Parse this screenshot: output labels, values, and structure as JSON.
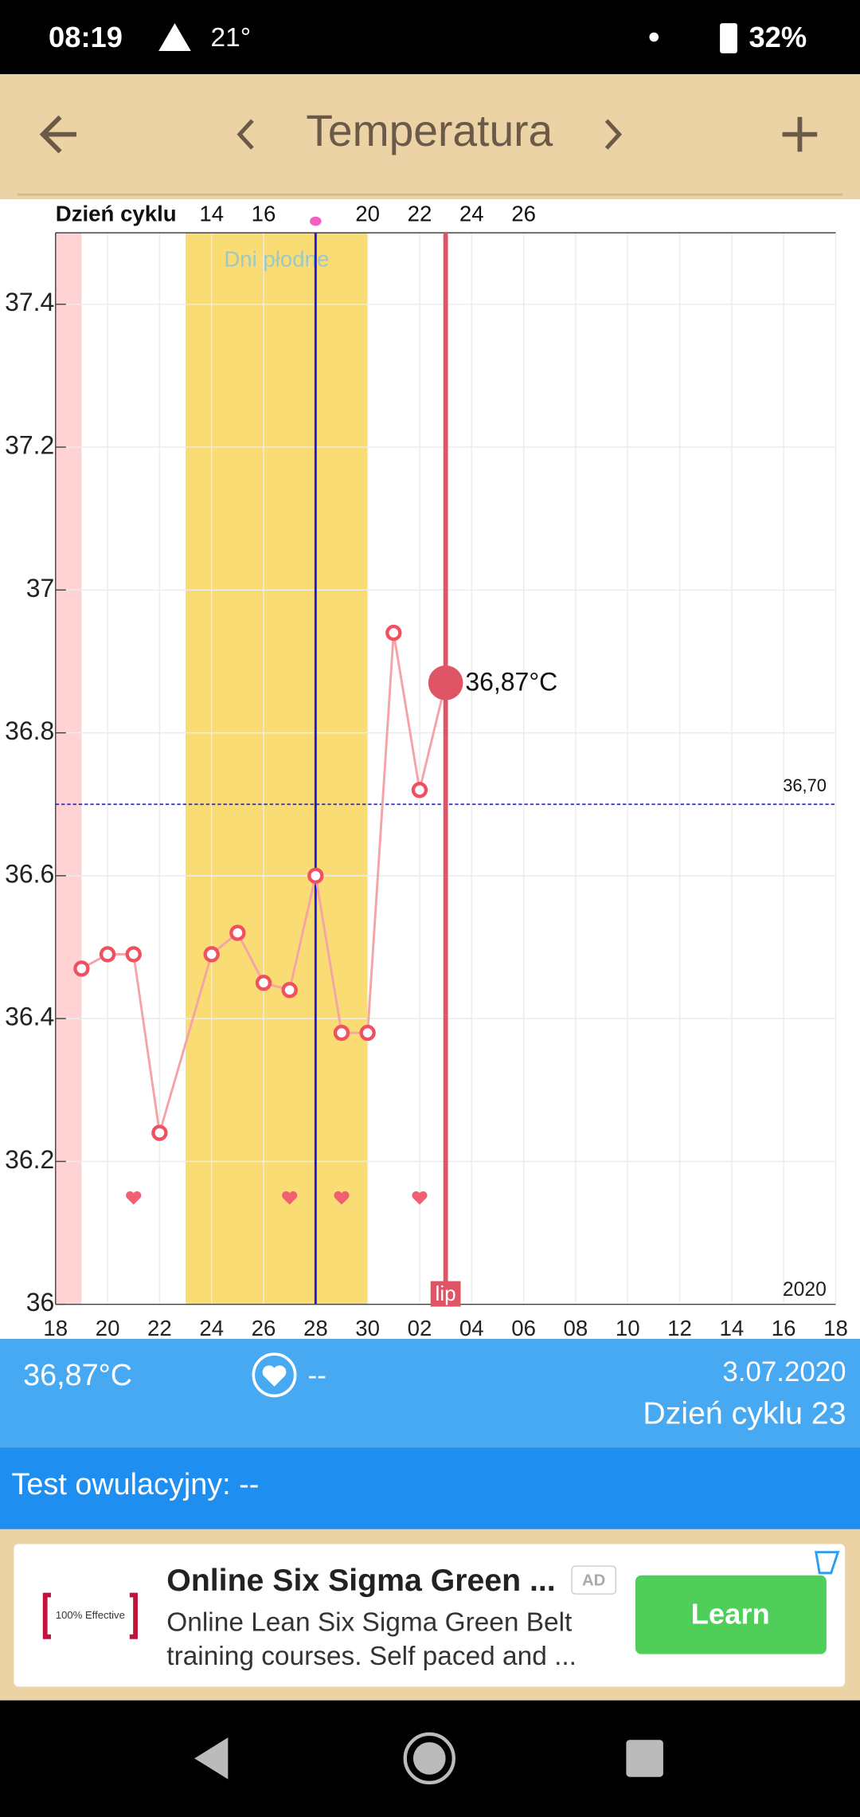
{
  "status_bar": {
    "time": "08:19",
    "temperature": "21°",
    "battery": "32%"
  },
  "toolbar": {
    "title": "Temperatura"
  },
  "chart_data": {
    "type": "line",
    "x_axis_label": "Dzień cyklu",
    "x": [
      1,
      2,
      3,
      4,
      6,
      7,
      8,
      9,
      10,
      11,
      12,
      13,
      14,
      15
    ],
    "series": [
      {
        "color": "#f4a3a6",
        "marker_color": "#f0505f",
        "values": [
          36.47,
          36.49,
          36.49,
          36.24,
          36.49,
          36.52,
          36.45,
          36.44,
          36.6,
          36.38,
          36.38,
          36.94,
          36.72,
          36.87
        ],
        "value_labels": [
          null,
          null,
          null,
          null,
          null,
          null,
          null,
          null,
          null,
          null,
          null,
          null,
          null,
          "36,87°C"
        ]
      }
    ],
    "xlim": [
      0,
      30
    ],
    "xticks": [
      {
        "value": 0,
        "label": "18"
      },
      {
        "value": 2,
        "label": "20"
      },
      {
        "value": 4,
        "label": "22"
      },
      {
        "value": 6,
        "label": "24"
      },
      {
        "value": 8,
        "label": "26"
      },
      {
        "value": 10,
        "label": "28"
      },
      {
        "value": 12,
        "label": "30"
      },
      {
        "value": 14,
        "label": "02"
      },
      {
        "value": 16,
        "label": "04"
      },
      {
        "value": 18,
        "label": "06"
      },
      {
        "value": 20,
        "label": "08"
      },
      {
        "value": 22,
        "label": "10"
      },
      {
        "value": 24,
        "label": "12"
      },
      {
        "value": 26,
        "label": "14"
      },
      {
        "value": 28,
        "label": "16"
      },
      {
        "value": 30,
        "label": "18"
      }
    ],
    "x2lim": [
      8,
      38
    ],
    "x2ticks": [
      14,
      16,
      20,
      22,
      24,
      26
    ],
    "ylim": [
      36,
      37.5
    ],
    "yticks": [
      36,
      36.2,
      36.4,
      36.6,
      36.8,
      37,
      37.2,
      37.4
    ],
    "grid": true,
    "year": "2020",
    "fertile_window": {
      "label": "Dni płodne",
      "x": [
        5,
        12
      ],
      "color": "#f9dc74"
    },
    "period": {
      "x": [
        0,
        1
      ],
      "color": "#ffd3d3"
    },
    "ovulation": {
      "x": 10,
      "color": "#1a1ad8"
    },
    "today": {
      "x": 15,
      "label": "lip",
      "color": "#e05565"
    },
    "coverline": {
      "value": 36.7,
      "label": "36,70",
      "color": "#2a2ae0"
    },
    "hearts_x": [
      3,
      9,
      11,
      14
    ]
  },
  "info": {
    "temperature": "36,87°C",
    "intercourse": "--",
    "date": "3.07.2020",
    "cycle_day": "Dzień cyklu 23"
  },
  "ovulation_test": "Test owulacyjny: --",
  "ad": {
    "badge_text": "100% Effective",
    "title": "Online Six Sigma Green ...",
    "tag": "AD",
    "text_lines": [
      "Online Lean Six Sigma Green Belt",
      "training courses. Self paced and ..."
    ],
    "button": "Learn"
  }
}
